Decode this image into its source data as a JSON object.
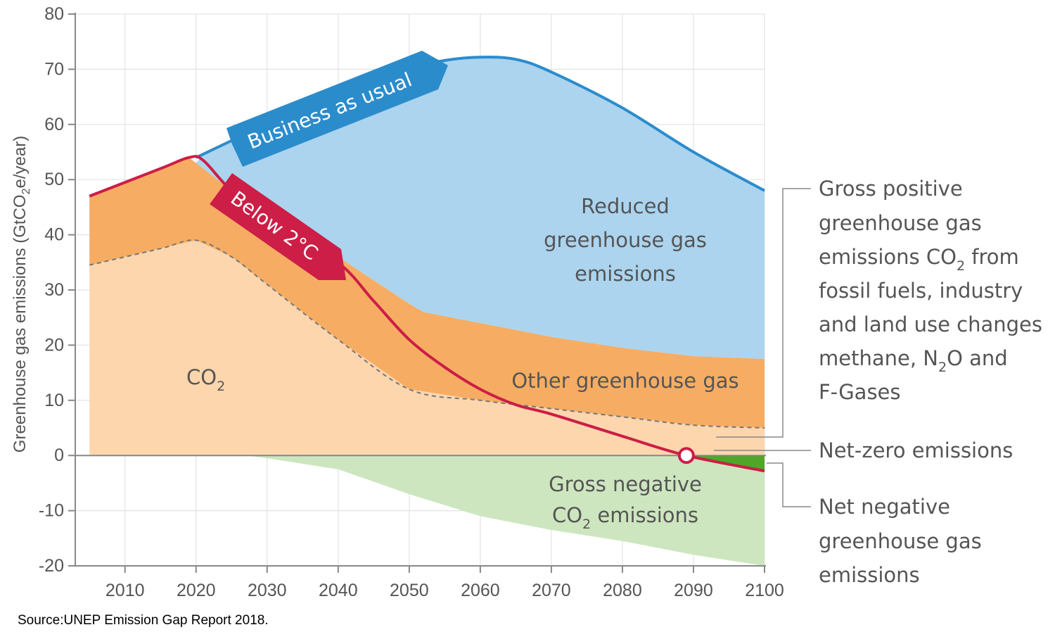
{
  "chart_data": {
    "type": "area",
    "ylabel": "Greenhouse gas emissions (GtCO₂e/year)",
    "ylabel_pre": "Greenhouse gas emissions (GtCO",
    "ylabel_sub": "2",
    "ylabel_post": "e/year)",
    "ylim": [
      -20,
      80
    ],
    "xlim": [
      2003,
      2100
    ],
    "x_ticks": [
      2010,
      2020,
      2030,
      2040,
      2050,
      2060,
      2070,
      2080,
      2090,
      2100
    ],
    "y_ticks": [
      -20,
      -10,
      0,
      10,
      20,
      30,
      40,
      50,
      60,
      70,
      80
    ],
    "grid": true,
    "series": [
      {
        "name": "Business as usual",
        "color": "#2b8ccc",
        "x": [
          2020,
          2030,
          2040,
          2050,
          2055,
          2060,
          2065,
          2070,
          2080,
          2090,
          2100
        ],
        "values": [
          54,
          60,
          65,
          70,
          71.6,
          72.2,
          71.8,
          69.5,
          63,
          55,
          48
        ]
      },
      {
        "name": "Below 2°C",
        "color": "#cc1e46",
        "x": [
          2005,
          2015,
          2019,
          2021,
          2025,
          2030,
          2040,
          2045,
          2050,
          2055,
          2060,
          2065,
          2070,
          2080,
          2089,
          2100
        ],
        "values": [
          47,
          52,
          54,
          53.5,
          48,
          44,
          35,
          28,
          21,
          16,
          12,
          9.2,
          7.5,
          3.5,
          0,
          -2.8
        ]
      },
      {
        "name": "Gross positive greenhouse gas emissions (top of orange)",
        "color": "#f6ad63",
        "x": [
          2005,
          2015,
          2019,
          2025,
          2030,
          2040,
          2050,
          2052,
          2060,
          2070,
          2080,
          2090,
          2100
        ],
        "values": [
          47,
          52,
          54,
          48,
          44,
          36,
          27.5,
          26,
          24,
          21.5,
          19.5,
          18,
          17.5
        ]
      },
      {
        "name": "CO₂ (top of light orange)",
        "color": "#fdd6ae",
        "x": [
          2005,
          2015,
          2020,
          2025,
          2030,
          2040,
          2050,
          2060,
          2070,
          2080,
          2090,
          2100
        ],
        "values": [
          34.5,
          37.5,
          39,
          36,
          31,
          21,
          12,
          10,
          8.5,
          7,
          5.5,
          5
        ]
      },
      {
        "name": "Gross negative CO₂ emissions",
        "color": "#cde6bf",
        "x": [
          2005,
          2020,
          2027,
          2030,
          2040,
          2050,
          2060,
          2070,
          2080,
          2090,
          2100
        ],
        "values": [
          0,
          0,
          0,
          -0.5,
          -2.5,
          -7,
          -11,
          -13.5,
          -15.5,
          -18,
          -20
        ]
      }
    ],
    "net_zero_point": [
      2089,
      0
    ]
  },
  "labels": {
    "business_as_usual": "Business as usual",
    "below_2c": "Below 2°C",
    "reduced": [
      "Reduced",
      "greenhouse gas",
      "emissions"
    ],
    "other_ghg": "Other greenhouse gas",
    "co2_main": "CO",
    "co2_sub": "2",
    "gross_negative_line1": "Gross negative",
    "gross_negative_line2_main": "CO",
    "gross_negative_line2_sub": "2",
    "gross_negative_line2_rest": " emissions"
  },
  "legend": {
    "gross_positive": {
      "line1": "Gross positive",
      "line2": "greenhouse gas",
      "line3_pre": "emissions CO",
      "line3_sub": "2",
      "line3_post": " from",
      "line4": "fossil fuels, industry",
      "line5": "and land use changes",
      "line6_pre": "methane, N",
      "line6_sub": "2",
      "line6_post": "O and",
      "line7": "F-Gases"
    },
    "net_zero": "Net-zero emissions",
    "net_negative": [
      "Net negative",
      "greenhouse gas",
      "emissions"
    ]
  },
  "colors": {
    "reduced_area": "#acd4ef",
    "other_ghg_area": "#f6ad63",
    "co2_area": "#fdd6ae",
    "negative_area": "#cde6bf",
    "net_negative_area": "#4ea729",
    "bau_line": "#2b8ccc",
    "below2_line": "#cc1e46",
    "grid": "#e3e3e3",
    "axis": "#888888"
  },
  "source": "Source:UNEP Emission Gap Report 2018."
}
